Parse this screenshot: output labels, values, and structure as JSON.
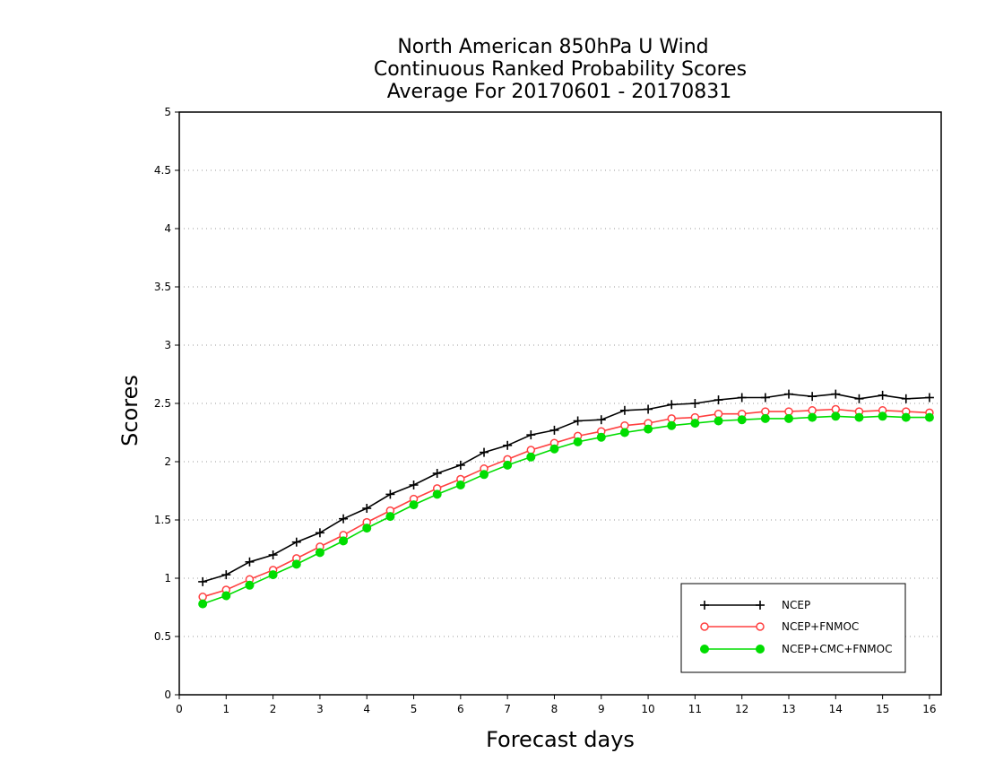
{
  "chart_data": {
    "type": "line",
    "title": [
      "North American 850hPa U Wind",
      "Continuous Ranked Probability Scores",
      "Average For 20170601 - 20170831"
    ],
    "xlabel": "Forecast days",
    "ylabel": "Scores",
    "xlim": [
      0,
      16.25
    ],
    "ylim": [
      0,
      5
    ],
    "xticks": [
      0,
      1,
      2,
      3,
      4,
      5,
      6,
      7,
      8,
      9,
      10,
      11,
      12,
      13,
      14,
      15,
      16
    ],
    "xtick_labels": [
      "0",
      "1",
      "2",
      "3",
      "4",
      "5",
      "6",
      "7",
      "8",
      "9",
      "10",
      "11",
      "12",
      "13",
      "14",
      "15",
      "16"
    ],
    "yticks": [
      0,
      0.5,
      1,
      1.5,
      2,
      2.5,
      3,
      3.5,
      4,
      4.5,
      5
    ],
    "ytick_labels": [
      "0",
      "0.5",
      "1",
      "1.5",
      "2",
      "2.5",
      "3",
      "3.5",
      "4",
      "4.5",
      "5"
    ],
    "grid": "horizontal dotted",
    "legend_position": "bottom-right",
    "x": [
      0.5,
      1,
      1.5,
      2,
      2.5,
      3,
      3.5,
      4,
      4.5,
      5,
      5.5,
      6,
      6.5,
      7,
      7.5,
      8,
      8.5,
      9,
      9.5,
      10,
      10.5,
      11,
      11.5,
      12,
      12.5,
      13,
      13.5,
      14,
      14.5,
      15,
      15.5,
      16
    ],
    "series": [
      {
        "name": "NCEP",
        "color": "#000000",
        "marker": "plus",
        "values": [
          0.97,
          1.03,
          1.14,
          1.2,
          1.31,
          1.39,
          1.51,
          1.6,
          1.72,
          1.8,
          1.9,
          1.97,
          2.08,
          2.14,
          2.23,
          2.27,
          2.35,
          2.36,
          2.44,
          2.45,
          2.49,
          2.5,
          2.53,
          2.55,
          2.55,
          2.58,
          2.56,
          2.58,
          2.54,
          2.57,
          2.54,
          2.55
        ]
      },
      {
        "name": "NCEP+FNMOC",
        "color": "#ff4040",
        "marker": "open-circle",
        "values": [
          0.84,
          0.9,
          0.99,
          1.07,
          1.17,
          1.27,
          1.37,
          1.48,
          1.58,
          1.68,
          1.77,
          1.85,
          1.94,
          2.02,
          2.1,
          2.16,
          2.22,
          2.26,
          2.31,
          2.33,
          2.37,
          2.38,
          2.41,
          2.41,
          2.43,
          2.43,
          2.44,
          2.45,
          2.43,
          2.44,
          2.43,
          2.42
        ]
      },
      {
        "name": "NCEP+CMC+FNMOC",
        "color": "#00dd00",
        "marker": "filled-circle",
        "values": [
          0.78,
          0.85,
          0.94,
          1.03,
          1.12,
          1.22,
          1.32,
          1.43,
          1.53,
          1.63,
          1.72,
          1.8,
          1.89,
          1.97,
          2.04,
          2.11,
          2.17,
          2.21,
          2.25,
          2.28,
          2.31,
          2.33,
          2.35,
          2.36,
          2.37,
          2.37,
          2.38,
          2.39,
          2.38,
          2.39,
          2.38,
          2.38
        ]
      }
    ]
  }
}
